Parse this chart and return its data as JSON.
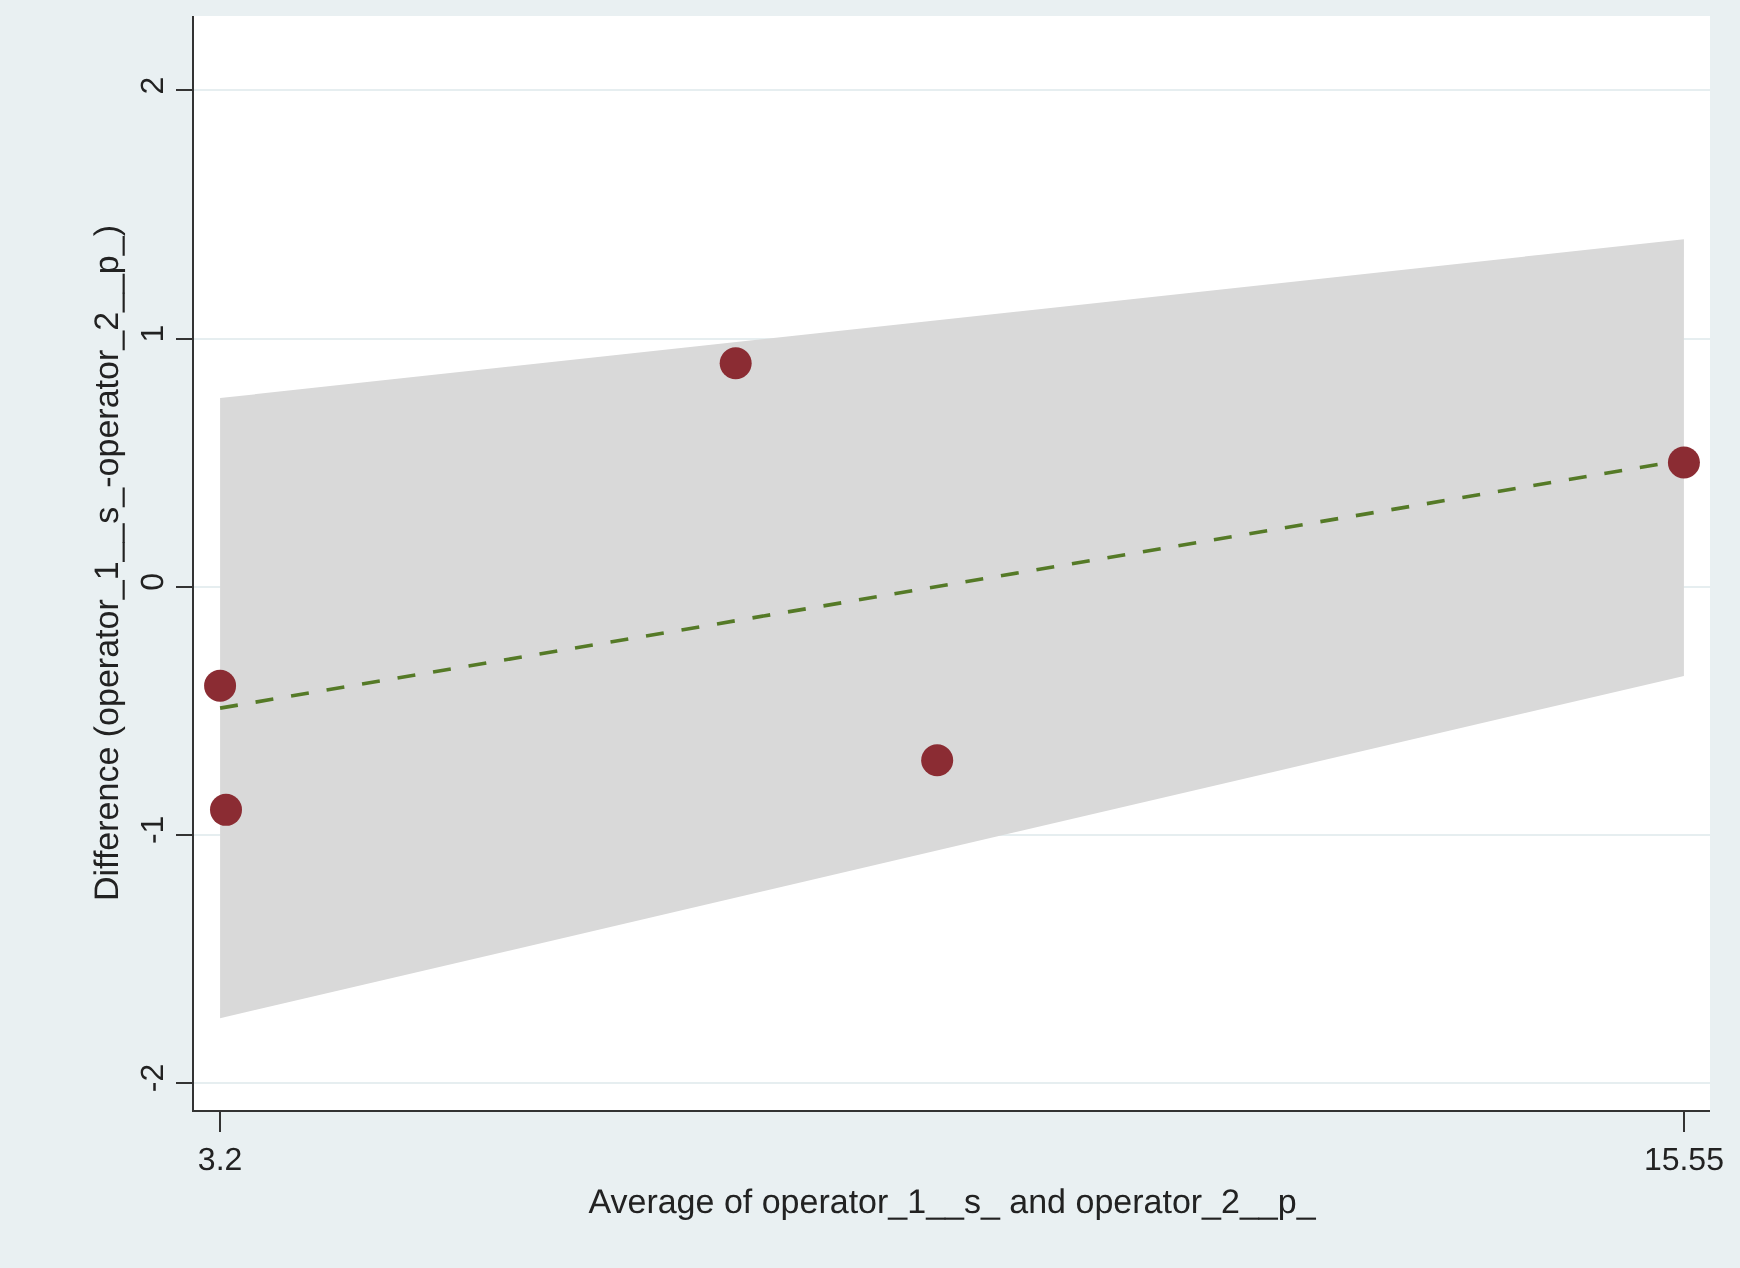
{
  "chart_data": {
    "type": "scatter",
    "xlabel": "Average of operator_1__s_ and operator_2__p_",
    "ylabel": "Difference (operator_1__s_-operator_2__p_)",
    "xlim": [
      2.98,
      15.77
    ],
    "xticks": [
      3.2,
      15.55
    ],
    "ylim": [
      -2.11,
      2.3
    ],
    "yticks": [
      -2,
      -1,
      0,
      1,
      2
    ],
    "series": [
      {
        "type": "line",
        "color": "#557a27",
        "x": [
          3.2,
          15.55
        ],
        "values": [
          -0.49,
          0.51
        ],
        "lower": [
          -1.74,
          -0.36
        ],
        "upper": [
          0.76,
          1.4
        ],
        "line_style": "dashed"
      },
      {
        "color": "#8b2c33",
        "x": [
          3.2,
          3.25,
          7.55,
          9.25,
          15.55
        ],
        "values": [
          -0.4,
          -0.9,
          0.9,
          -0.7,
          0.5
        ],
        "marker": "circle"
      }
    ],
    "grid": "y"
  }
}
